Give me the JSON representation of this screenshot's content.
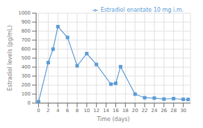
{
  "chart_data": {
    "type": "line",
    "x": [
      0,
      2,
      3,
      4,
      6,
      8,
      10,
      12,
      15,
      16,
      17,
      20,
      22,
      24,
      26,
      28,
      30,
      31
    ],
    "series": [
      {
        "name": "Estradiol enantate 10 mg i.m.",
        "color": "#5b9bd5",
        "marker": "square",
        "values": [
          15,
          450,
          600,
          850,
          730,
          415,
          550,
          430,
          210,
          220,
          405,
          100,
          60,
          55,
          45,
          50,
          42,
          40
        ]
      }
    ],
    "xlabel": "Time (days)",
    "ylabel": "Estradiol levels (pg/mL)",
    "xlim": [
      -0.5,
      31.5
    ],
    "ylim": [
      0,
      1000
    ],
    "xticks": [
      0,
      2,
      4,
      6,
      8,
      10,
      12,
      14,
      16,
      18,
      20,
      22,
      24,
      26,
      28,
      30
    ],
    "yticks": [
      0,
      100,
      200,
      300,
      400,
      500,
      600,
      700,
      800,
      900,
      1000
    ],
    "grid": true,
    "legend": "upper right"
  }
}
